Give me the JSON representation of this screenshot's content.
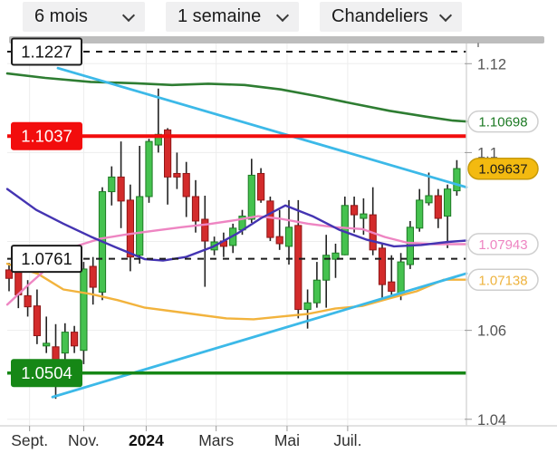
{
  "toolbar": {
    "controls": [
      {
        "id": "range",
        "label": "6 mois"
      },
      {
        "id": "interval",
        "label": "1 semaine"
      },
      {
        "id": "chart_type",
        "label": "Chandeliers"
      }
    ]
  },
  "chart_data": {
    "type": "candlestick",
    "range": "6 mois",
    "interval": "1 semaine",
    "candle_up_color": "#45c24f",
    "candle_up_border": "#1d7a24",
    "candle_down_color": "#d32b2b",
    "candle_down_border": "#8f1717",
    "wick_color": "#222222",
    "grid_color": "#ededed",
    "axis_border_color": "#d9d9d9",
    "tick_text_color": "#555555",
    "ylim": [
      1.038,
      1.125
    ],
    "y_ticks": [
      {
        "label": "1.12",
        "price": 1.12
      },
      {
        "label": "1.1",
        "price": 1.1
      },
      {
        "label": "1.06",
        "price": 1.06
      },
      {
        "label": "1.04",
        "price": 1.04
      }
    ],
    "grid_prices": [
      1.12,
      1.1,
      1.08,
      1.06,
      1.04
    ],
    "x_ticks": [
      {
        "label": "Sept.",
        "i": 2.2,
        "bold": false
      },
      {
        "label": "Nov.",
        "i": 8.0,
        "bold": false
      },
      {
        "label": "2024",
        "i": 14.7,
        "bold": true
      },
      {
        "label": "Mars",
        "i": 22.2,
        "bold": false
      },
      {
        "label": "Mai",
        "i": 29.8,
        "bold": false
      },
      {
        "label": "Juil.",
        "i": 36.3,
        "bold": false
      }
    ],
    "candles": [
      [
        1.0736,
        1.0752,
        1.0688,
        1.0717
      ],
      [
        1.0738,
        1.0758,
        1.065,
        1.068
      ],
      [
        1.0678,
        1.0713,
        1.0631,
        1.0653
      ],
      [
        1.0655,
        1.0692,
        1.0569,
        1.0588
      ],
      [
        1.0565,
        1.0631,
        1.0549,
        1.0571
      ],
      [
        1.0563,
        1.0614,
        1.0446,
        1.0532
      ],
      [
        1.0549,
        1.0616,
        1.0524,
        1.0596
      ],
      [
        1.0596,
        1.061,
        1.0549,
        1.0565
      ],
      [
        1.0555,
        1.0754,
        1.0524,
        1.0738
      ],
      [
        1.0744,
        1.0765,
        1.0658,
        1.0697
      ],
      [
        1.0686,
        1.0922,
        1.0668,
        1.0912
      ],
      [
        1.0912,
        1.0969,
        1.0881,
        1.0945
      ],
      [
        1.0945,
        1.1025,
        1.083,
        1.0891
      ],
      [
        1.0893,
        1.0928,
        1.0733,
        1.0765
      ],
      [
        1.0769,
        1.1015,
        1.075,
        1.0901
      ],
      [
        1.0901,
        1.1031,
        1.0887,
        1.1025
      ],
      [
        1.1017,
        1.1144,
        1.1,
        1.1041
      ],
      [
        1.1051,
        1.1055,
        1.0883,
        1.0945
      ],
      [
        1.0953,
        1.1,
        1.0918,
        1.0945
      ],
      [
        1.0953,
        1.0979,
        1.0855,
        1.0901
      ],
      [
        1.0901,
        1.0938,
        1.082,
        1.0846
      ],
      [
        1.085,
        1.0903,
        1.0698,
        1.0801
      ],
      [
        1.0781,
        1.0811,
        1.0769,
        1.0799
      ],
      [
        1.0801,
        1.082,
        1.0765,
        1.0789
      ],
      [
        1.0791,
        1.084,
        1.0774,
        1.083
      ],
      [
        1.0826,
        1.0871,
        1.0815,
        1.0857
      ],
      [
        1.085,
        1.0986,
        1.0842,
        1.0949
      ],
      [
        1.0953,
        1.0965,
        1.0887,
        1.0893
      ],
      [
        1.0891,
        1.0901,
        1.0801,
        1.0809
      ],
      [
        1.0811,
        1.0871,
        1.0781,
        1.0795
      ],
      [
        1.0789,
        1.0893,
        1.0748,
        1.0832
      ],
      [
        1.0836,
        1.0893,
        1.0627,
        1.0647
      ],
      [
        1.0647,
        1.0692,
        1.0604,
        1.0662
      ],
      [
        1.0662,
        1.0754,
        1.0651,
        1.0713
      ],
      [
        1.0713,
        1.0815,
        1.0651,
        1.0769
      ],
      [
        1.076,
        1.0795,
        1.0718,
        1.0774
      ],
      [
        1.077,
        1.0901,
        1.0769,
        1.0881
      ],
      [
        1.0881,
        1.0901,
        1.082,
        1.086
      ],
      [
        1.0852,
        1.0897,
        1.0815,
        1.0862
      ],
      [
        1.086,
        1.0922,
        1.0769,
        1.0781
      ],
      [
        1.0785,
        1.0795,
        1.0672,
        1.0703
      ],
      [
        1.0709,
        1.0769,
        1.0678,
        1.0688
      ],
      [
        1.0682,
        1.0774,
        1.0668,
        1.0754
      ],
      [
        1.0748,
        1.0846,
        1.0738,
        1.0832
      ],
      [
        1.083,
        1.0918,
        1.0822,
        1.0893
      ],
      [
        1.0887,
        1.0955,
        1.0881,
        1.0903
      ],
      [
        1.0903,
        1.0918,
        1.083,
        1.0852
      ],
      [
        1.0857,
        1.0928,
        1.0785,
        1.0918
      ],
      [
        1.0914,
        1.0983,
        1.0903,
        1.0964
      ]
    ],
    "overlays": [
      {
        "name": "ma-green-slow",
        "color": "#2e7d32",
        "width": 2.6,
        "points": [
          [
            8,
            1.1178
          ],
          [
            50,
            1.1168
          ],
          [
            100,
            1.1159
          ],
          [
            150,
            1.1156
          ],
          [
            190,
            1.1152
          ],
          [
            230,
            1.1155
          ],
          [
            270,
            1.1152
          ],
          [
            310,
            1.1142
          ],
          [
            350,
            1.1127
          ],
          [
            390,
            1.111
          ],
          [
            430,
            1.1094
          ],
          [
            470,
            1.1081
          ],
          [
            500,
            1.1072
          ],
          [
            515,
            1.107
          ]
        ]
      },
      {
        "name": "ma-orange",
        "color": "#f2b33d",
        "width": 2.4,
        "points": [
          [
            8,
            1.075
          ],
          [
            42,
            1.0727
          ],
          [
            70,
            1.0692
          ],
          [
            100,
            1.0682
          ],
          [
            130,
            1.0668
          ],
          [
            160,
            1.0651
          ],
          [
            190,
            1.0643
          ],
          [
            220,
            1.0635
          ],
          [
            250,
            1.0627
          ],
          [
            280,
            1.0625
          ],
          [
            310,
            1.0631
          ],
          [
            340,
            1.0637
          ],
          [
            370,
            1.0649
          ],
          [
            400,
            1.0655
          ],
          [
            430,
            1.0672
          ],
          [
            460,
            1.0688
          ],
          [
            490,
            1.0714
          ],
          [
            515,
            1.0714
          ]
        ]
      },
      {
        "name": "ma-pink",
        "color": "#ee85c2",
        "width": 2.4,
        "points": [
          [
            8,
            1.0658
          ],
          [
            30,
            1.07
          ],
          [
            55,
            1.0745
          ],
          [
            85,
            1.079
          ],
          [
            110,
            1.0806
          ],
          [
            140,
            1.0816
          ],
          [
            170,
            1.0824
          ],
          [
            200,
            1.0832
          ],
          [
            230,
            1.0839
          ],
          [
            260,
            1.0848
          ],
          [
            285,
            1.0857
          ],
          [
            310,
            1.0851
          ],
          [
            340,
            1.084
          ],
          [
            370,
            1.0832
          ],
          [
            400,
            1.0828
          ],
          [
            425,
            1.081
          ],
          [
            450,
            1.0797
          ],
          [
            480,
            1.0794
          ],
          [
            515,
            1.0794
          ]
        ]
      },
      {
        "name": "ma-navy",
        "color": "#4434b2",
        "width": 2.4,
        "points": [
          [
            8,
            1.0918
          ],
          [
            40,
            1.0871
          ],
          [
            70,
            1.084
          ],
          [
            100,
            1.0811
          ],
          [
            130,
            1.0785
          ],
          [
            160,
            1.076
          ],
          [
            180,
            1.0757
          ],
          [
            205,
            1.0765
          ],
          [
            235,
            1.0788
          ],
          [
            262,
            1.0818
          ],
          [
            288,
            1.0852
          ],
          [
            315,
            1.0881
          ],
          [
            345,
            1.0857
          ],
          [
            375,
            1.0826
          ],
          [
            405,
            1.0804
          ],
          [
            435,
            1.0789
          ],
          [
            465,
            1.0792
          ],
          [
            495,
            1.0799
          ],
          [
            515,
            1.0802
          ]
        ]
      }
    ],
    "trendlines": [
      {
        "name": "descending-resistance",
        "color": "#3cb9e8",
        "width": 2.8,
        "from": [
          64,
          1.119
        ],
        "to": [
          515,
          1.0922
        ]
      },
      {
        "name": "ascending-support",
        "color": "#3cb9e8",
        "width": 2.8,
        "from": [
          58,
          1.045
        ],
        "to": [
          515,
          1.0728
        ]
      }
    ],
    "price_lines": [
      {
        "label": "1.1227",
        "price": 1.1227,
        "style": "dashed",
        "line_color": "#1c1c1c",
        "line_width": 2,
        "box_bg": "#ffffff",
        "box_border": "#1c1c1c",
        "box_text_color": "#111111"
      },
      {
        "label": "1.1037",
        "price": 1.1037,
        "style": "solid",
        "line_color": "#f20d0d",
        "line_width": 4,
        "box_bg": "#f20d0d",
        "box_border": "#f20d0d",
        "box_text_color": "#ffffff"
      },
      {
        "label": "1.0761",
        "price": 1.0761,
        "style": "dashed",
        "line_color": "#1c1c1c",
        "line_width": 2,
        "box_bg": "#ffffff",
        "box_border": "#1c1c1c",
        "box_text_color": "#111111"
      },
      {
        "label": "1.0504",
        "price": 1.0504,
        "style": "solid",
        "line_color": "#168716",
        "line_width": 3.5,
        "box_bg": "#168716",
        "box_border": "#168716",
        "box_text_color": "#ffffff"
      }
    ],
    "price_tags": [
      {
        "label": "1.10698",
        "price": 1.10698,
        "bg": "#ffffff",
        "border": "#cfcfcf",
        "text_color": "#1d7a24"
      },
      {
        "label": "1.09637",
        "price": 1.09637,
        "bg": "#f3ba10",
        "border": "#c79a08",
        "text_color": "#1a1a1a"
      },
      {
        "label": "1.07943",
        "price": 1.07943,
        "bg": "#ffffff",
        "border": "#cfcfcf",
        "text_color": "#ee85c2"
      },
      {
        "label": "1.07138",
        "price": 1.07138,
        "bg": "#ffffff",
        "border": "#cfcfcf",
        "text_color": "#eeb33e"
      }
    ]
  }
}
